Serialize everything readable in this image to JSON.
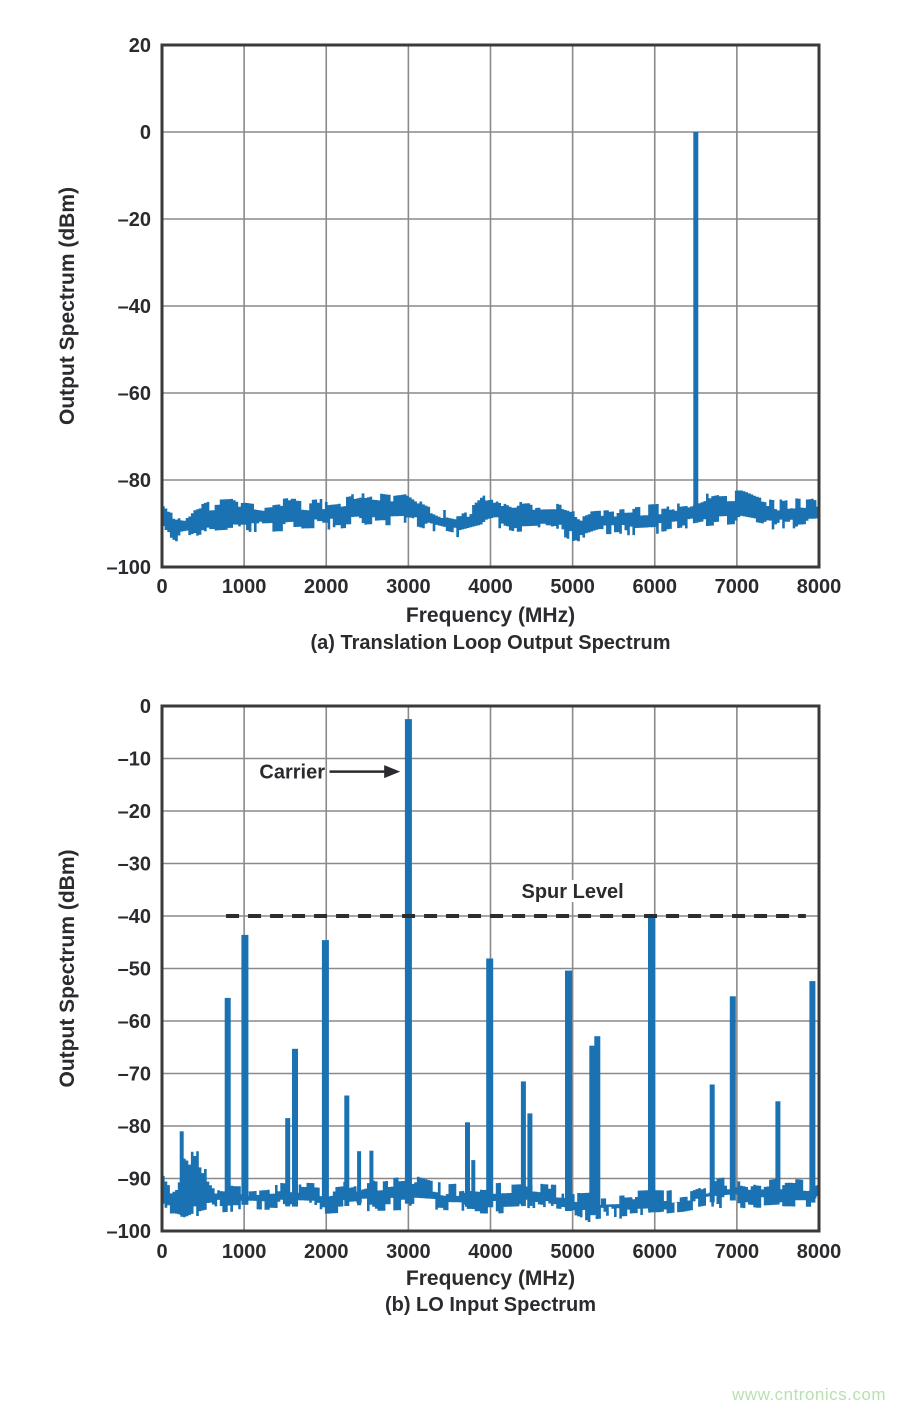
{
  "page": {
    "background": "#ffffff"
  },
  "watermark": {
    "text": "www.cntronics.com",
    "color": "#b9e0b0"
  },
  "colors": {
    "trace": "#1a72b2",
    "grid": "#8a8a8a",
    "axis": "#3a3a3a",
    "text": "#2b2a2e",
    "threshold": "#2c2c31"
  },
  "chart_data": [
    {
      "id": "a",
      "type": "area",
      "title": "(a) Translation Loop Output Spectrum",
      "xlabel": "Frequency (MHz)",
      "ylabel": "Output Spectrum (dBm)",
      "xlim": [
        0,
        8000
      ],
      "ylim": [
        -100,
        20
      ],
      "grid": true,
      "x_ticks": [
        0,
        1000,
        2000,
        3000,
        4000,
        5000,
        6000,
        7000,
        8000
      ],
      "x_tick_labels": [
        "0",
        "1000",
        "2000",
        "3000",
        "4000",
        "5000",
        "6000",
        "7000",
        "8000"
      ],
      "y_ticks": [
        20,
        0,
        -20,
        -40,
        -60,
        -80,
        -100
      ],
      "y_tick_labels": [
        "20",
        "0",
        "–20",
        "–40",
        "–60",
        "–80",
        "–100"
      ],
      "spurs": [
        [
          6500,
          0.0,
          5
        ]
      ],
      "noise_top": [
        [
          0,
          -86.0
        ],
        [
          60,
          -86.3
        ],
        [
          130,
          -89.4
        ],
        [
          260,
          -89.8
        ],
        [
          380,
          -87.0
        ],
        [
          550,
          -85.8
        ],
        [
          800,
          -85.6
        ],
        [
          1000,
          -85.2
        ],
        [
          1250,
          -86.0
        ],
        [
          1500,
          -85.4
        ],
        [
          1800,
          -85.8
        ],
        [
          2100,
          -85.2
        ],
        [
          2350,
          -84.3
        ],
        [
          2550,
          -83.3
        ],
        [
          2750,
          -83.8
        ],
        [
          2980,
          -83.2
        ],
        [
          3120,
          -85.2
        ],
        [
          3400,
          -87.6
        ],
        [
          3600,
          -88.4
        ],
        [
          3750,
          -87.4
        ],
        [
          3900,
          -84.8
        ],
        [
          4050,
          -84.4
        ],
        [
          4250,
          -86.4
        ],
        [
          4550,
          -86.0
        ],
        [
          4800,
          -85.9
        ],
        [
          4980,
          -87.0
        ],
        [
          5080,
          -88.6
        ],
        [
          5220,
          -87.6
        ],
        [
          5500,
          -87.2
        ],
        [
          5800,
          -87.0
        ],
        [
          6100,
          -86.6
        ],
        [
          6400,
          -85.9
        ],
        [
          6600,
          -84.4
        ],
        [
          6800,
          -83.7
        ],
        [
          7050,
          -83.6
        ],
        [
          7250,
          -85.2
        ],
        [
          7450,
          -85.9
        ],
        [
          7650,
          -85.3
        ],
        [
          7850,
          -85.7
        ],
        [
          8000,
          -85.2
        ]
      ],
      "noise_bottom": [
        [
          0,
          -90.6
        ],
        [
          150,
          -92.9
        ],
        [
          300,
          -92.4
        ],
        [
          500,
          -91.0
        ],
        [
          800,
          -90.6
        ],
        [
          1200,
          -90.8
        ],
        [
          1600,
          -90.4
        ],
        [
          2000,
          -90.2
        ],
        [
          2500,
          -89.4
        ],
        [
          3000,
          -89.0
        ],
        [
          3300,
          -90.6
        ],
        [
          3600,
          -92.0
        ],
        [
          3800,
          -91.0
        ],
        [
          4050,
          -89.7
        ],
        [
          4300,
          -90.7
        ],
        [
          4700,
          -90.4
        ],
        [
          5050,
          -93.3
        ],
        [
          5300,
          -91.7
        ],
        [
          5700,
          -91.5
        ],
        [
          6000,
          -91.2
        ],
        [
          6300,
          -90.6
        ],
        [
          6600,
          -89.4
        ],
        [
          7000,
          -88.9
        ],
        [
          7300,
          -90.0
        ],
        [
          7600,
          -90.4
        ],
        [
          8000,
          -90.0
        ]
      ]
    },
    {
      "id": "b",
      "type": "area",
      "title": "(b) LO Input Spectrum",
      "xlabel": "Frequency (MHz)",
      "ylabel": "Output Spectrum (dBm)",
      "xlim": [
        0,
        8000
      ],
      "ylim": [
        -100,
        0
      ],
      "grid": true,
      "x_ticks": [
        0,
        1000,
        2000,
        3000,
        4000,
        5000,
        6000,
        7000,
        8000
      ],
      "x_tick_labels": [
        "0",
        "1000",
        "2000",
        "3000",
        "4000",
        "5000",
        "6000",
        "7000",
        "8000"
      ],
      "y_ticks": [
        0,
        -10,
        -20,
        -30,
        -40,
        -50,
        -60,
        -70,
        -80,
        -90,
        -100
      ],
      "y_tick_labels": [
        "0",
        "–10",
        "–20",
        "–30",
        "–40",
        "–50",
        "–60",
        "–70",
        "–80",
        "–90",
        "–100"
      ],
      "spurs": [
        [
          240,
          -81.0
        ],
        [
          800,
          -55.6
        ],
        [
          1010,
          -43.6
        ],
        [
          1530,
          -78.5
        ],
        [
          1620,
          -65.3
        ],
        [
          1990,
          -44.6
        ],
        [
          2250,
          -74.2
        ],
        [
          2400,
          -84.8
        ],
        [
          2550,
          -84.7
        ],
        [
          3000,
          -2.5
        ],
        [
          3720,
          -79.3
        ],
        [
          3790,
          -86.5
        ],
        [
          3990,
          -48.1
        ],
        [
          4400,
          -71.5
        ],
        [
          4480,
          -77.6
        ],
        [
          4950,
          -50.4
        ],
        [
          5240,
          -64.7
        ],
        [
          5300,
          -62.9
        ],
        [
          5960,
          -40.0
        ],
        [
          6700,
          -72.1
        ],
        [
          6950,
          -55.3
        ],
        [
          7500,
          -75.3
        ],
        [
          7920,
          -52.4
        ]
      ],
      "noise_top": [
        [
          0,
          -89.5
        ],
        [
          80,
          -92.2
        ],
        [
          160,
          -91.4
        ],
        [
          210,
          -88.5
        ],
        [
          260,
          -84.7
        ],
        [
          330,
          -86.4
        ],
        [
          400,
          -85.5
        ],
        [
          470,
          -87.8
        ],
        [
          560,
          -91.2
        ],
        [
          700,
          -92.0
        ],
        [
          900,
          -92.3
        ],
        [
          1100,
          -92.0
        ],
        [
          1400,
          -91.6
        ],
        [
          1700,
          -92.0
        ],
        [
          2000,
          -92.2
        ],
        [
          2300,
          -91.7
        ],
        [
          2460,
          -90.7
        ],
        [
          2620,
          -91.5
        ],
        [
          2900,
          -90.9
        ],
        [
          3050,
          -90.6
        ],
        [
          3250,
          -91.6
        ],
        [
          3500,
          -92.3
        ],
        [
          3680,
          -91.9
        ],
        [
          3900,
          -92.2
        ],
        [
          4150,
          -92.0
        ],
        [
          4400,
          -91.9
        ],
        [
          4650,
          -92.3
        ],
        [
          4900,
          -92.5
        ],
        [
          5060,
          -94.0
        ],
        [
          5350,
          -93.8
        ],
        [
          5650,
          -93.6
        ],
        [
          5950,
          -93.4
        ],
        [
          6150,
          -93.5
        ],
        [
          6400,
          -93.0
        ],
        [
          6650,
          -91.5
        ],
        [
          6900,
          -90.8
        ],
        [
          7050,
          -91.0
        ],
        [
          7250,
          -91.8
        ],
        [
          7450,
          -91.3
        ],
        [
          7650,
          -91.2
        ],
        [
          7850,
          -91.6
        ],
        [
          8000,
          -91.2
        ]
      ],
      "noise_bottom": [
        [
          0,
          -94.0
        ],
        [
          110,
          -96.6
        ],
        [
          260,
          -97.0
        ],
        [
          400,
          -96.0
        ],
        [
          560,
          -95.4
        ],
        [
          750,
          -95.2
        ],
        [
          1000,
          -95.0
        ],
        [
          1500,
          -95.3
        ],
        [
          2000,
          -95.5
        ],
        [
          2500,
          -95.0
        ],
        [
          3000,
          -94.8
        ],
        [
          3500,
          -95.3
        ],
        [
          4000,
          -95.5
        ],
        [
          4500,
          -95.2
        ],
        [
          4900,
          -95.9
        ],
        [
          5120,
          -97.2
        ],
        [
          5450,
          -96.6
        ],
        [
          5750,
          -96.2
        ],
        [
          6050,
          -96.0
        ],
        [
          6350,
          -95.5
        ],
        [
          6650,
          -94.6
        ],
        [
          6950,
          -94.2
        ],
        [
          7250,
          -94.8
        ],
        [
          7550,
          -94.5
        ],
        [
          8000,
          -94.6
        ]
      ],
      "threshold": {
        "label": "Spur Level",
        "level": -40,
        "from_freq": 780,
        "to_freq": 7840,
        "label_freq": 5000,
        "label_level": -35.2
      },
      "carrier": {
        "label": "Carrier",
        "peak_freq": 3000,
        "peak_level": -2.5,
        "label_end_freq": 1985,
        "label_level": -12.5,
        "arrow_from_freq": 2040,
        "arrow_tip_freq": 2900
      }
    }
  ]
}
